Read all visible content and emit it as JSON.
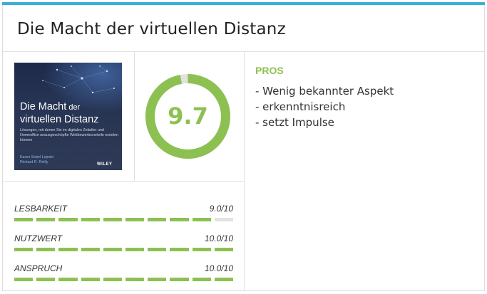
{
  "title": "Die Macht der virtuellen Distanz",
  "book_cover": {
    "title_line1_big": "Die Macht",
    "title_line1_small": " der",
    "title_line2": "virtuellen Distanz",
    "subtitle": "Lösungen, mit denen Sie im digitalen Zeitalter und Homeoffice unausgeschöpfte Wettbewerbsvorteile erzielen können",
    "author1": "Karen Sobel Lojeski",
    "author2": "Richard R. Reilly",
    "publisher": "WILEY"
  },
  "score": {
    "value": "9.7",
    "fraction": 0.97,
    "color": "#8cc152",
    "track_color": "#e2e2e2"
  },
  "ratings": [
    {
      "label": "Lesbarkeit",
      "value": "9.0/10",
      "level": 0.9
    },
    {
      "label": "Nutzwert",
      "value": "10.0/10",
      "level": 1.0
    },
    {
      "label": "Anspruch",
      "value": "10.0/10",
      "level": 1.0
    }
  ],
  "pros": {
    "heading": "PROS",
    "items": [
      "- Wenig bekannter Aspekt",
      "- erkenntnisreich",
      "- setzt Impulse"
    ]
  },
  "colors": {
    "accent_bar": "#3aaed8",
    "green": "#8cc152"
  }
}
